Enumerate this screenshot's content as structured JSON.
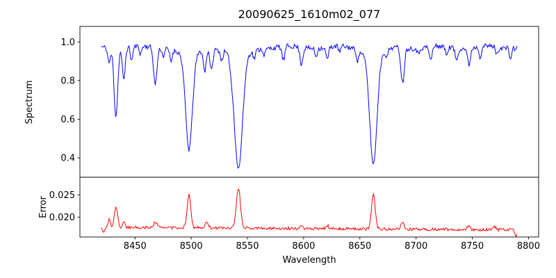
{
  "figure": {
    "background": "#ffffff",
    "frame_color": "#000000"
  },
  "chart_data": {
    "type": "line",
    "title": "20090625_1610m02_077",
    "xlabel": "Wavelength",
    "grid": false,
    "legend": "none",
    "xlim": [
      8401,
      8809
    ],
    "x_range": [
      8420,
      8790
    ],
    "sample_step": 0.75,
    "x_ticks": [
      8450,
      8500,
      8550,
      8600,
      8650,
      8700,
      8750,
      8800
    ],
    "panels": [
      {
        "name": "spectrum",
        "ylabel": "Spectrum",
        "color": "#0000ff",
        "ylim": [
          0.3,
          1.08
        ],
        "y_ticks": [
          0.4,
          0.6,
          0.8,
          1.0
        ],
        "y_tick_labels": [
          "0.4",
          "0.6",
          "0.8",
          "1.0"
        ],
        "continuum": 0.972,
        "noise": 0.013,
        "wiggle": 0.006,
        "features": [
          {
            "center": 8427,
            "min_flux": 0.895,
            "sigma": 1.2
          },
          {
            "center": 8433,
            "min_flux": 0.62,
            "sigma": 1.6
          },
          {
            "center": 8440,
            "min_flux": 0.8,
            "sigma": 1.2
          },
          {
            "center": 8447,
            "min_flux": 0.9,
            "sigma": 1.0
          },
          {
            "center": 8455,
            "min_flux": 0.93,
            "sigma": 0.9
          },
          {
            "center": 8468,
            "min_flux": 0.78,
            "sigma": 1.5
          },
          {
            "center": 8475,
            "min_flux": 0.93,
            "sigma": 0.9
          },
          {
            "center": 8482,
            "min_flux": 0.91,
            "sigma": 1.0
          },
          {
            "center": 8498,
            "min_flux": 0.48,
            "sigma": 3.0
          },
          {
            "center": 8498,
            "min_flux": 0.93,
            "sigma": 9.0
          },
          {
            "center": 8512,
            "min_flux": 0.86,
            "sigma": 1.2
          },
          {
            "center": 8518,
            "min_flux": 0.86,
            "sigma": 1.2
          },
          {
            "center": 8527,
            "min_flux": 0.92,
            "sigma": 1.0
          },
          {
            "center": 8536,
            "min_flux": 0.94,
            "sigma": 0.9
          },
          {
            "center": 8542,
            "min_flux": 0.38,
            "sigma": 3.6
          },
          {
            "center": 8542,
            "min_flux": 0.93,
            "sigma": 10.0
          },
          {
            "center": 8556,
            "min_flux": 0.93,
            "sigma": 1.0
          },
          {
            "center": 8565,
            "min_flux": 0.94,
            "sigma": 0.9
          },
          {
            "center": 8582,
            "min_flux": 0.9,
            "sigma": 1.2
          },
          {
            "center": 8598,
            "min_flux": 0.885,
            "sigma": 1.3
          },
          {
            "center": 8611,
            "min_flux": 0.93,
            "sigma": 1.0
          },
          {
            "center": 8621,
            "min_flux": 0.91,
            "sigma": 1.2
          },
          {
            "center": 8632,
            "min_flux": 0.94,
            "sigma": 0.9
          },
          {
            "center": 8648,
            "min_flux": 0.92,
            "sigma": 1.0
          },
          {
            "center": 8662,
            "min_flux": 0.41,
            "sigma": 3.2
          },
          {
            "center": 8662,
            "min_flux": 0.93,
            "sigma": 9.0
          },
          {
            "center": 8674,
            "min_flux": 0.93,
            "sigma": 1.0
          },
          {
            "center": 8688,
            "min_flux": 0.79,
            "sigma": 1.5
          },
          {
            "center": 8702,
            "min_flux": 0.94,
            "sigma": 0.9
          },
          {
            "center": 8713,
            "min_flux": 0.9,
            "sigma": 1.2
          },
          {
            "center": 8727,
            "min_flux": 0.93,
            "sigma": 1.0
          },
          {
            "center": 8736,
            "min_flux": 0.91,
            "sigma": 1.2
          },
          {
            "center": 8747,
            "min_flux": 0.885,
            "sigma": 1.3
          },
          {
            "center": 8757,
            "min_flux": 0.92,
            "sigma": 1.0
          },
          {
            "center": 8772,
            "min_flux": 0.93,
            "sigma": 1.0
          },
          {
            "center": 8784,
            "min_flux": 0.92,
            "sigma": 1.0
          }
        ]
      },
      {
        "name": "error",
        "ylabel": "Error",
        "color": "#ff0000",
        "ylim": [
          0.0155,
          0.029
        ],
        "y_ticks": [
          0.02,
          0.025
        ],
        "y_tick_labels": [
          "0.020",
          "0.025"
        ],
        "baseline": 0.0177,
        "slope": -1.6e-06,
        "noise": 0.00032,
        "features": [
          {
            "center": 8422,
            "peak": 0.0163,
            "sigma": 0.8
          },
          {
            "center": 8427,
            "peak": 0.0195,
            "sigma": 1.0
          },
          {
            "center": 8433,
            "peak": 0.0224,
            "sigma": 1.4
          },
          {
            "center": 8440,
            "peak": 0.019,
            "sigma": 1.0
          },
          {
            "center": 8468,
            "peak": 0.0191,
            "sigma": 1.4
          },
          {
            "center": 8498,
            "peak": 0.0253,
            "sigma": 1.6
          },
          {
            "center": 8514,
            "peak": 0.019,
            "sigma": 1.4
          },
          {
            "center": 8542,
            "peak": 0.0268,
            "sigma": 1.8
          },
          {
            "center": 8598,
            "peak": 0.0186,
            "sigma": 1.2
          },
          {
            "center": 8621,
            "peak": 0.0184,
            "sigma": 1.2
          },
          {
            "center": 8662,
            "peak": 0.0258,
            "sigma": 1.6
          },
          {
            "center": 8688,
            "peak": 0.0191,
            "sigma": 1.3
          },
          {
            "center": 8747,
            "peak": 0.0186,
            "sigma": 1.2
          },
          {
            "center": 8770,
            "peak": 0.0184,
            "sigma": 1.0
          },
          {
            "center": 8789,
            "peak": 0.0162,
            "sigma": 0.9
          }
        ]
      }
    ]
  }
}
